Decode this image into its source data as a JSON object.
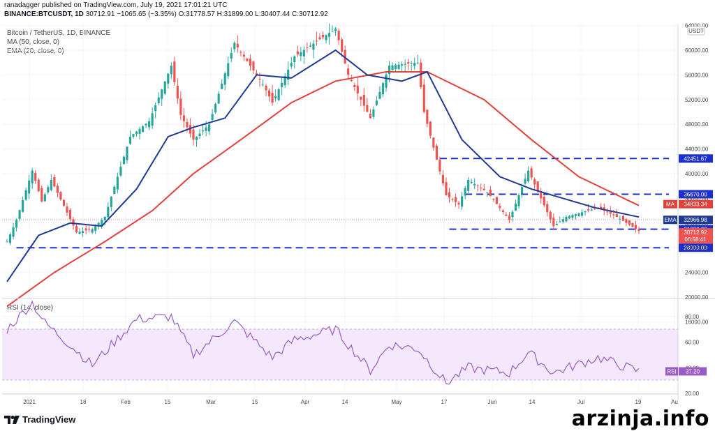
{
  "header": {
    "published": "ranadagger published on TradingView.com, July 19, 2021 17:01:21 UTC",
    "symbol": "BINANCE:BTCUSDT, 1D",
    "last": "30712.91",
    "change": "−1065.65 (−3.35%)",
    "o_label": "O:",
    "o": "31778.57",
    "h_label": "H:",
    "h": "31899.00",
    "l_label": "L:",
    "l": "30407.44",
    "c_label": "C:",
    "c": "30712.92"
  },
  "legend": {
    "pair": "Bitcoin / TetherUS, 1D, BINANCE",
    "ma": "MA (50, close, 0)",
    "ema": "EMA (20, close, 0)",
    "rsi": "RSI (14, close)"
  },
  "footer": {
    "brand": "TradingView",
    "watermark": "arzinja.info"
  },
  "colors": {
    "candle_up": "#26a69a",
    "candle_down": "#ef5350",
    "ema": "#1f3a93",
    "ma": "#e3413a",
    "level_line": "#1c2ecc",
    "rsi": "#9c5cc7",
    "rsi_band": "#f1e6fb"
  },
  "chart_data": [
    {
      "type": "candlestick",
      "title": "Bitcoin / TetherUS, 1D, BINANCE",
      "currency": "USDT",
      "ylim": [
        16000,
        66000
      ],
      "y_ticks": [
        16000,
        20000,
        24000,
        28000,
        32000,
        36000,
        40000,
        44000,
        48000,
        52000,
        56000,
        60000,
        64000
      ],
      "x_ticks": [
        "2021",
        "18",
        "Feb",
        "15",
        "Mar",
        "15",
        "Apr",
        "14",
        "May",
        "17",
        "Jun",
        "14",
        "Jul",
        "19",
        "Au"
      ],
      "price_path": [
        [
          "2020-12-31",
          29000
        ],
        [
          "2021-01-03",
          32500
        ],
        [
          "2021-01-08",
          40500
        ],
        [
          "2021-01-11",
          35500
        ],
        [
          "2021-01-14",
          39000
        ],
        [
          "2021-01-22",
          30500
        ],
        [
          "2021-01-27",
          31000
        ],
        [
          "2021-01-31",
          33000
        ],
        [
          "2021-02-08",
          46000
        ],
        [
          "2021-02-14",
          48500
        ],
        [
          "2021-02-21",
          57500
        ],
        [
          "2021-02-24",
          49500
        ],
        [
          "2021-02-28",
          45500
        ],
        [
          "2021-03-05",
          48000
        ],
        [
          "2021-03-13",
          61200
        ],
        [
          "2021-03-22",
          54500
        ],
        [
          "2021-03-25",
          51500
        ],
        [
          "2021-04-01",
          59000
        ],
        [
          "2021-04-14",
          63500
        ],
        [
          "2021-04-18",
          56000
        ],
        [
          "2021-04-25",
          49000
        ],
        [
          "2021-05-01",
          57500
        ],
        [
          "2021-05-10",
          58000
        ],
        [
          "2021-05-12",
          50000
        ],
        [
          "2021-05-19",
          36500
        ],
        [
          "2021-05-23",
          35000
        ],
        [
          "2021-05-26",
          39000
        ],
        [
          "2021-06-01",
          37000
        ],
        [
          "2021-06-08",
          32500
        ],
        [
          "2021-06-14",
          40500
        ],
        [
          "2021-06-22",
          31500
        ],
        [
          "2021-06-26",
          33000
        ],
        [
          "2021-07-06",
          34500
        ],
        [
          "2021-07-12",
          33000
        ],
        [
          "2021-07-19",
          30712.92
        ]
      ],
      "ema20": [
        [
          "2020-12-31",
          22500
        ],
        [
          "2021-01-10",
          30000
        ],
        [
          "2021-01-20",
          32000
        ],
        [
          "2021-01-30",
          31500
        ],
        [
          "2021-02-10",
          37500
        ],
        [
          "2021-02-20",
          46000
        ],
        [
          "2021-02-28",
          47500
        ],
        [
          "2021-03-10",
          49000
        ],
        [
          "2021-03-20",
          56000
        ],
        [
          "2021-03-31",
          55500
        ],
        [
          "2021-04-14",
          60000
        ],
        [
          "2021-04-24",
          56000
        ],
        [
          "2021-05-05",
          55000
        ],
        [
          "2021-05-13",
          56500
        ],
        [
          "2021-05-24",
          45500
        ],
        [
          "2021-06-05",
          39500
        ],
        [
          "2021-06-15",
          37500
        ],
        [
          "2021-06-25",
          36000
        ],
        [
          "2021-07-05",
          34500
        ],
        [
          "2021-07-19",
          32966.98
        ]
      ],
      "ma50": [
        [
          "2020-12-31",
          18500
        ],
        [
          "2021-01-15",
          24000
        ],
        [
          "2021-01-31",
          29000
        ],
        [
          "2021-02-15",
          34000
        ],
        [
          "2021-02-28",
          40000
        ],
        [
          "2021-03-15",
          45500
        ],
        [
          "2021-03-31",
          51500
        ],
        [
          "2021-04-14",
          55000
        ],
        [
          "2021-04-30",
          56500
        ],
        [
          "2021-05-13",
          56500
        ],
        [
          "2021-05-31",
          52000
        ],
        [
          "2021-06-15",
          45500
        ],
        [
          "2021-06-30",
          39500
        ],
        [
          "2021-07-19",
          34833.34
        ]
      ],
      "levels": [
        {
          "label": "42451.67",
          "value": 42451.67,
          "x_start": "2021-05-17"
        },
        {
          "label": "36670.00",
          "value": 36670,
          "x_start": "2021-05-25"
        },
        {
          "label": "31000.00",
          "value": 31000,
          "x_start": "2021-05-20"
        },
        {
          "label": "28000.00",
          "value": 28000,
          "x_start": "2021-01-03"
        }
      ],
      "price_tags": [
        {
          "name": "MA",
          "label": "34833.34",
          "value": 34833.34
        },
        {
          "name": "EMA",
          "label": "32966.98",
          "value": 32966.98
        },
        {
          "name": "",
          "label": "30712.92",
          "value": 30712.92,
          "sub": "06:58:41"
        }
      ]
    },
    {
      "type": "line",
      "title": "RSI (14, close)",
      "ylim": [
        20,
        95
      ],
      "y_ticks": [
        20.0,
        40.0,
        60.0,
        80.0
      ],
      "bands": [
        30,
        70
      ],
      "series": [
        {
          "name": "RSI",
          "last": "37.20",
          "values": [
            [
              "2020-12-31",
              70
            ],
            [
              "2021-01-08",
              91
            ],
            [
              "2021-01-12",
              75
            ],
            [
              "2021-01-20",
              58
            ],
            [
              "2021-01-27",
              42
            ],
            [
              "2021-02-01",
              55
            ],
            [
              "2021-02-10",
              78
            ],
            [
              "2021-02-21",
              80
            ],
            [
              "2021-02-28",
              50
            ],
            [
              "2021-03-13",
              76
            ],
            [
              "2021-03-25",
              48
            ],
            [
              "2021-04-01",
              62
            ],
            [
              "2021-04-14",
              70
            ],
            [
              "2021-04-25",
              38
            ],
            [
              "2021-05-01",
              58
            ],
            [
              "2021-05-10",
              55
            ],
            [
              "2021-05-19",
              28
            ],
            [
              "2021-05-26",
              40
            ],
            [
              "2021-06-08",
              36
            ],
            [
              "2021-06-14",
              52
            ],
            [
              "2021-06-22",
              36
            ],
            [
              "2021-07-06",
              48
            ],
            [
              "2021-07-19",
              37.2
            ]
          ]
        }
      ]
    }
  ]
}
